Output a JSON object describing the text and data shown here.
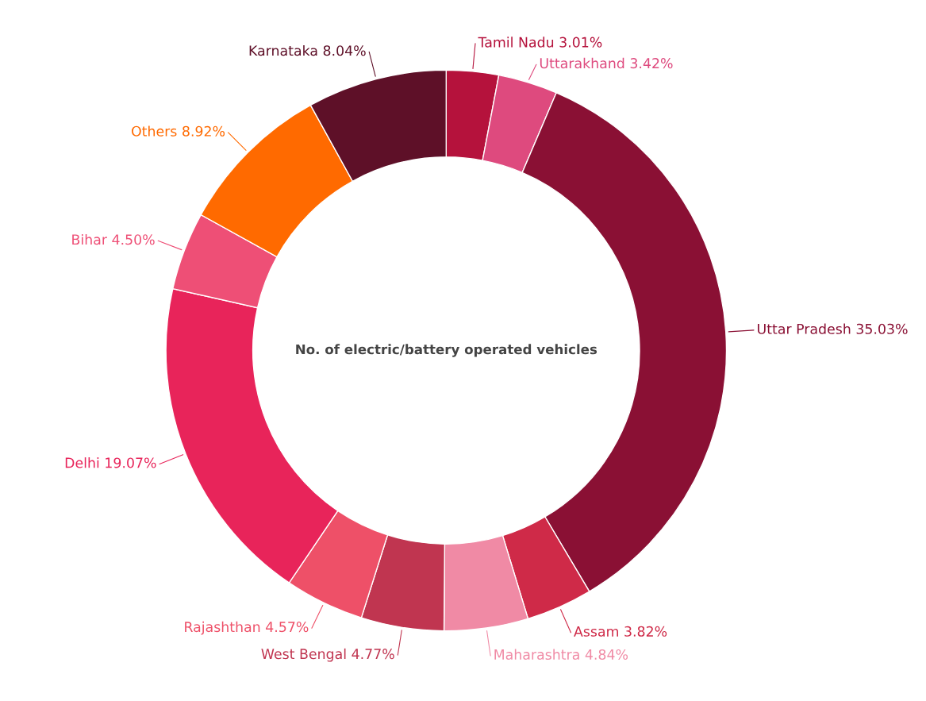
{
  "chart_data": {
    "type": "donut",
    "title": "No. of electric/battery operated vehicles",
    "categories": [
      "Tamil Nadu",
      "Uttarakhand",
      "Uttar Pradesh",
      "Assam",
      "Maharashtra",
      "West Bengal",
      "Rajashthan",
      "Delhi",
      "Bihar",
      "Others",
      "Karnataka"
    ],
    "values": [
      3.01,
      3.42,
      35.03,
      3.82,
      4.84,
      4.77,
      4.57,
      19.07,
      4.5,
      8.92,
      8.04
    ],
    "value_labels": [
      "3.01%",
      "3.42%",
      "35.03%",
      "3.82%",
      "4.84%",
      "4.77%",
      "4.57%",
      "19.07%",
      "4.50%",
      "8.92%",
      "8.04%"
    ],
    "colors": [
      "#b5123c",
      "#de4a7e",
      "#8a1034",
      "#cf2a48",
      "#f08aa5",
      "#c03550",
      "#ee5068",
      "#e8245a",
      "#ee4f76",
      "#ff6a00",
      "#5e1028"
    ],
    "legend": false
  }
}
